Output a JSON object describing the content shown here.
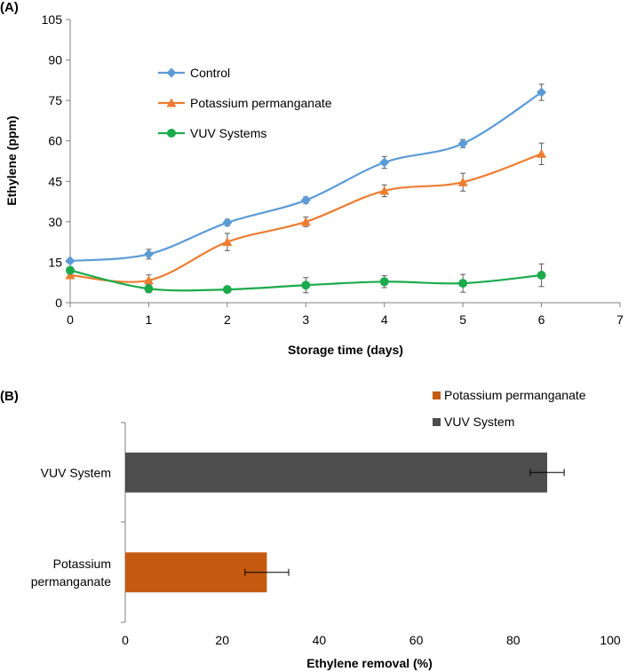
{
  "chart_data": [
    {
      "panel": "(A)",
      "type": "line",
      "title": "",
      "xlabel": "Storage time (days)",
      "ylabel": "Ethylene (ppm)",
      "xlim": [
        0,
        7
      ],
      "ylim": [
        0,
        105
      ],
      "x_ticks": [
        0,
        1,
        2,
        3,
        4,
        5,
        6,
        7
      ],
      "y_ticks": [
        0,
        15,
        30,
        45,
        60,
        75,
        90,
        105
      ],
      "x": [
        0,
        1,
        2,
        3,
        4,
        5,
        6
      ],
      "series": [
        {
          "name": "Control",
          "color": "#5B9BD5",
          "marker": "diamond",
          "values": [
            15.5,
            18,
            29.7,
            38,
            52,
            59,
            78
          ],
          "errors": [
            0.8,
            1.8,
            1.2,
            1.2,
            2.2,
            1.5,
            3.0
          ]
        },
        {
          "name": "Potassium permanganate",
          "color": "#ED7D31",
          "marker": "triangle",
          "values": [
            10.2,
            8.3,
            22.5,
            30,
            41.5,
            44.7,
            55.2
          ],
          "errors": [
            1.0,
            2.0,
            3.2,
            1.8,
            2.2,
            3.3,
            4.0
          ]
        },
        {
          "name": "VUV Systems",
          "color": "#1BAA4B",
          "marker": "circle",
          "values": [
            12,
            5.2,
            4.9,
            6.5,
            7.8,
            7.2,
            10.2
          ],
          "errors": [
            1.0,
            1.5,
            0.8,
            2.8,
            2.2,
            3.3,
            4.2
          ]
        }
      ]
    },
    {
      "panel": "(B)",
      "type": "bar",
      "orientation": "horizontal",
      "title": "",
      "xlabel": "Ethylene removal (%)",
      "ylabel": "",
      "xlim": [
        0,
        100
      ],
      "x_ticks": [
        0,
        20,
        40,
        60,
        80,
        100
      ],
      "categories": [
        "VUV System",
        "Potassium permanganate"
      ],
      "category_lines": [
        [
          "VUV System"
        ],
        [
          "Potassium",
          "permanganate"
        ]
      ],
      "values": [
        87,
        29.2
      ],
      "errors": [
        3.5,
        4.5
      ],
      "colors": [
        "#4D4D4D",
        "#C55A11"
      ],
      "legend": [
        {
          "name": "Potassium permanganate",
          "color": "#C55A11"
        },
        {
          "name": "VUV System",
          "color": "#4D4D4D"
        }
      ]
    }
  ]
}
